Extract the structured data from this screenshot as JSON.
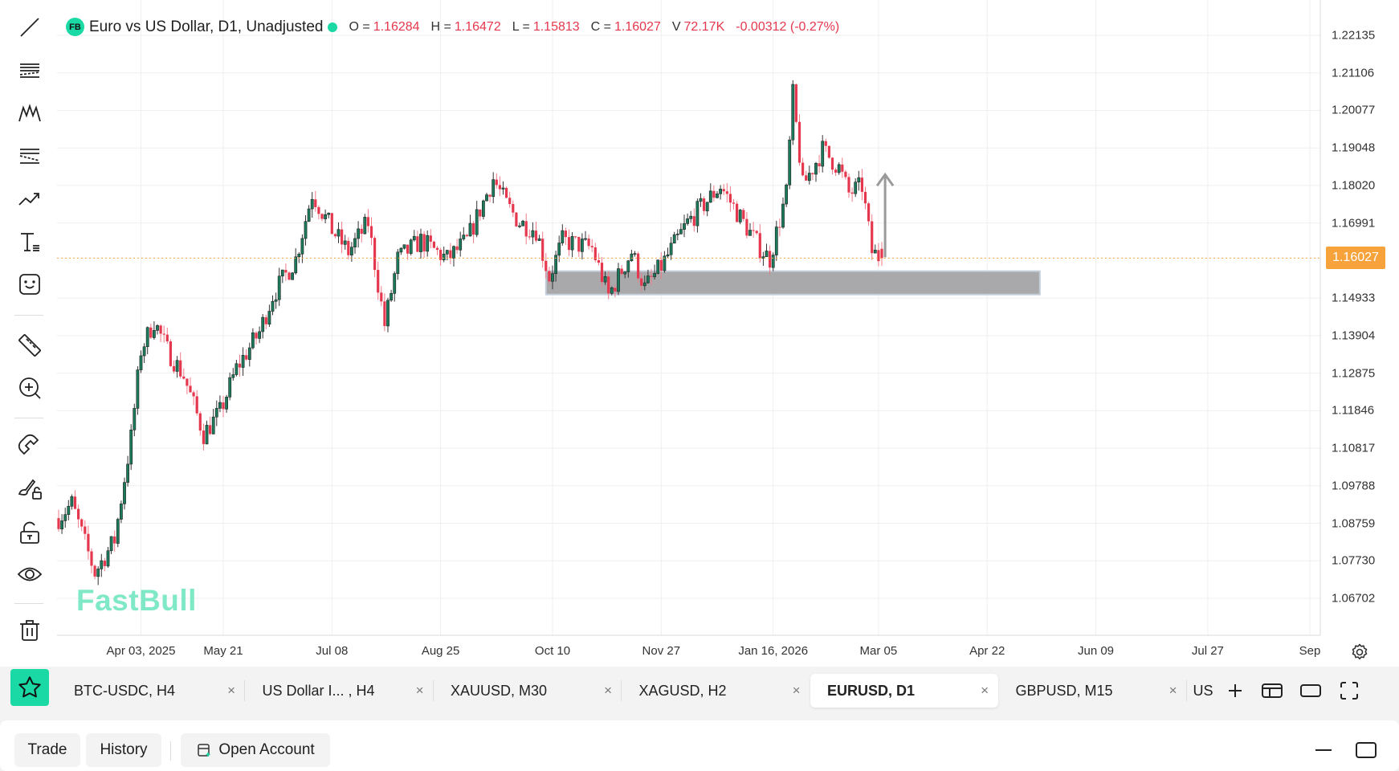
{
  "legend": {
    "badge": "FB",
    "title": "Euro vs US Dollar, D1, Unadjusted",
    "o_label": "O =",
    "o": "1.16284",
    "h_label": "H =",
    "h": "1.16472",
    "l_label": "L =",
    "l": "1.15813",
    "c_label": "C =",
    "c": "1.16027",
    "v_label": "V",
    "v": "72.17K",
    "change": "-0.00312 (-0.27%)"
  },
  "colors": {
    "up": "#1c7a5c",
    "down": "#e5374d",
    "accent": "#1ad9a4",
    "current": "#f7a23b",
    "zone": "#a9a9ab"
  },
  "price_axis": [
    "1.22135",
    "1.21106",
    "1.20077",
    "1.19048",
    "1.18020",
    "1.16991",
    "1.14933",
    "1.13904",
    "1.12875",
    "1.11846",
    "1.10817",
    "1.09788",
    "1.08759",
    "1.07730",
    "1.06702"
  ],
  "current_price": "1.16027",
  "date_axis": [
    {
      "i": 25,
      "label": "Apr 03, 2025"
    },
    {
      "i": 50,
      "label": "May 21"
    },
    {
      "i": 83,
      "label": "Jul 08"
    },
    {
      "i": 116,
      "label": "Aug 25"
    },
    {
      "i": 150,
      "label": "Oct 10"
    },
    {
      "i": 183,
      "label": "Nov 27"
    },
    {
      "i": 217,
      "label": "Jan 16, 2026"
    },
    {
      "i": 249,
      "label": "Mar 05"
    },
    {
      "i": 282,
      "label": "Apr 22"
    },
    {
      "i": 315,
      "label": "Jun 09"
    },
    {
      "i": 349,
      "label": "Jul 27"
    },
    {
      "i": 380,
      "label": "Sep"
    }
  ],
  "chart_data": {
    "type": "candlestick",
    "symbol": "EURUSD",
    "timeframe": "D1",
    "waypoints": [
      [
        0,
        1.089
      ],
      [
        4,
        1.093
      ],
      [
        11,
        1.074
      ],
      [
        17,
        1.083
      ],
      [
        22,
        1.111
      ],
      [
        25,
        1.135
      ],
      [
        29,
        1.143
      ],
      [
        33,
        1.135
      ],
      [
        38,
        1.128
      ],
      [
        44,
        1.112
      ],
      [
        49,
        1.118
      ],
      [
        54,
        1.13
      ],
      [
        61,
        1.14
      ],
      [
        65,
        1.15
      ],
      [
        72,
        1.16
      ],
      [
        77,
        1.178
      ],
      [
        83,
        1.168
      ],
      [
        88,
        1.162
      ],
      [
        94,
        1.17
      ],
      [
        99,
        1.142
      ],
      [
        103,
        1.16
      ],
      [
        110,
        1.165
      ],
      [
        118,
        1.16
      ],
      [
        124,
        1.165
      ],
      [
        132,
        1.182
      ],
      [
        136,
        1.175
      ],
      [
        140,
        1.17
      ],
      [
        145,
        1.168
      ],
      [
        149,
        1.155
      ],
      [
        153,
        1.165
      ],
      [
        162,
        1.163
      ],
      [
        167,
        1.15
      ],
      [
        174,
        1.162
      ],
      [
        178,
        1.152
      ],
      [
        183,
        1.158
      ],
      [
        191,
        1.17
      ],
      [
        197,
        1.176
      ],
      [
        201,
        1.18
      ],
      [
        208,
        1.17
      ],
      [
        213,
        1.163
      ],
      [
        216,
        1.16
      ],
      [
        221,
        1.178
      ],
      [
        223,
        1.205
      ],
      [
        226,
        1.18
      ],
      [
        232,
        1.19
      ],
      [
        237,
        1.185
      ],
      [
        240,
        1.178
      ],
      [
        244,
        1.18
      ],
      [
        247,
        1.162
      ],
      [
        250,
        1.16
      ]
    ],
    "last": {
      "o": 1.16284,
      "h": 1.16472,
      "l": 1.15813,
      "c": 1.16027
    },
    "zone": {
      "from_i": 148,
      "to_i": 298,
      "low": 1.1503,
      "high": 1.1567
    },
    "arrow": {
      "i": 251,
      "from": 1.1605,
      "to": 1.1832
    }
  },
  "watermark": "FastBull",
  "toolbar": [
    "trend-line",
    "parallel-channel",
    "pattern",
    "fib-retracement",
    "path",
    "text",
    "emoji",
    "ruler",
    "zoom-in",
    "magnet",
    "brush-lock",
    "lock",
    "eye",
    "trash"
  ],
  "tabs": [
    {
      "label": "BTC-USDC, H4"
    },
    {
      "label": "US Dollar I... , H4"
    },
    {
      "label": "XAUUSD, M30"
    },
    {
      "label": "XAGUSD, H2"
    },
    {
      "label": "EURUSD, D1",
      "active": true
    },
    {
      "label": "GBPUSD, M15"
    }
  ],
  "tab_close": "×",
  "tab_more": "US",
  "bottom": {
    "trade": "Trade",
    "history": "History",
    "open_account": "Open Account"
  }
}
